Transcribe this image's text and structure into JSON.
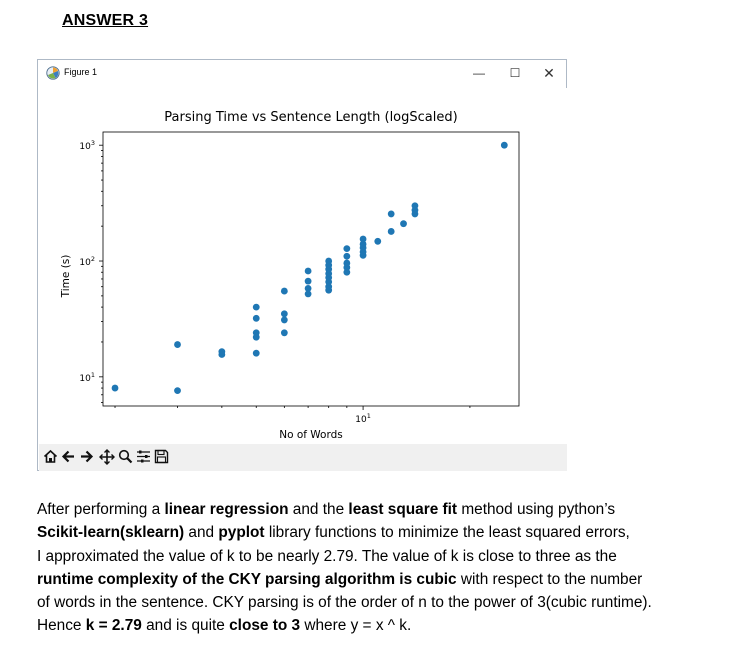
{
  "heading": "ANSWER 3",
  "window": {
    "title": "Figure 1",
    "controls": {
      "minimize": "—",
      "maximize": "☐",
      "close": "✕"
    }
  },
  "toolbar": {
    "icons": [
      "home-icon",
      "back-arrow-icon",
      "forward-arrow-icon",
      "pan-icon",
      "zoom-icon",
      "subplots-icon",
      "save-icon"
    ]
  },
  "chart_data": {
    "type": "scatter",
    "title": "Parsing Time vs Sentence Length (logScaled)",
    "xlabel": "No of Words",
    "ylabel": "Time (s)",
    "xscale": "log",
    "yscale": "log",
    "xlim": [
      1.85,
      27.5
    ],
    "ylim": [
      5.6,
      1300
    ],
    "xticks": [
      {
        "value": 10,
        "label": "10",
        "exp": "1"
      }
    ],
    "yticks": [
      {
        "value": 10,
        "label": "10",
        "exp": "1"
      },
      {
        "value": 100,
        "label": "10",
        "exp": "2"
      },
      {
        "value": 1000,
        "label": "10",
        "exp": "3"
      }
    ],
    "color": "#1f77b4",
    "grid": false,
    "legend": "none",
    "points": [
      {
        "x": 2,
        "y": 8
      },
      {
        "x": 3,
        "y": 7.6
      },
      {
        "x": 3,
        "y": 19
      },
      {
        "x": 4,
        "y": 15.6
      },
      {
        "x": 4,
        "y": 16.5
      },
      {
        "x": 5,
        "y": 16
      },
      {
        "x": 5,
        "y": 22
      },
      {
        "x": 5,
        "y": 24
      },
      {
        "x": 5,
        "y": 32
      },
      {
        "x": 5,
        "y": 40
      },
      {
        "x": 6,
        "y": 24
      },
      {
        "x": 6,
        "y": 31
      },
      {
        "x": 6,
        "y": 35
      },
      {
        "x": 6,
        "y": 55
      },
      {
        "x": 7,
        "y": 52
      },
      {
        "x": 7,
        "y": 58
      },
      {
        "x": 7,
        "y": 67
      },
      {
        "x": 7,
        "y": 82
      },
      {
        "x": 8,
        "y": 56
      },
      {
        "x": 8,
        "y": 60
      },
      {
        "x": 8,
        "y": 66
      },
      {
        "x": 8,
        "y": 72
      },
      {
        "x": 8,
        "y": 78
      },
      {
        "x": 8,
        "y": 85
      },
      {
        "x": 8,
        "y": 92
      },
      {
        "x": 8,
        "y": 100
      },
      {
        "x": 9,
        "y": 80
      },
      {
        "x": 9,
        "y": 88
      },
      {
        "x": 9,
        "y": 96
      },
      {
        "x": 9,
        "y": 110
      },
      {
        "x": 9,
        "y": 128
      },
      {
        "x": 10,
        "y": 112
      },
      {
        "x": 10,
        "y": 120
      },
      {
        "x": 10,
        "y": 130
      },
      {
        "x": 10,
        "y": 140
      },
      {
        "x": 10,
        "y": 155
      },
      {
        "x": 11,
        "y": 148
      },
      {
        "x": 12,
        "y": 180
      },
      {
        "x": 12,
        "y": 255
      },
      {
        "x": 13,
        "y": 210
      },
      {
        "x": 14,
        "y": 255
      },
      {
        "x": 14,
        "y": 275
      },
      {
        "x": 14,
        "y": 300
      },
      {
        "x": 25,
        "y": 1000
      }
    ]
  },
  "paragraph": [
    [
      {
        "t": "After performing a "
      },
      {
        "t": "linear regression",
        "b": true
      },
      {
        "t": " and the "
      },
      {
        "t": "least square fit",
        "b": true
      },
      {
        "t": " method using python’s"
      }
    ],
    [
      {
        "t": "Scikit-learn(sklearn)",
        "b": true
      },
      {
        "t": " and "
      },
      {
        "t": "pyplot",
        "b": true
      },
      {
        "t": " library functions to minimize the least squared errors,"
      }
    ],
    [
      {
        "t": "I approximated the value of k to be nearly 2.79. The value of k is close to three as the"
      }
    ],
    [
      {
        "t": "runtime complexity of the CKY parsing algorithm is cubic",
        "b": true
      },
      {
        "t": " with respect to the number"
      }
    ],
    [
      {
        "t": "of words in the sentence. CKY parsing is of the order of n to the power of 3(cubic runtime)."
      }
    ],
    [
      {
        "t": "Hence "
      },
      {
        "t": "k = 2.79",
        "b": true
      },
      {
        "t": " and is quite "
      },
      {
        "t": "close to 3",
        "b": true
      },
      {
        "t": " where y = x ^ k."
      }
    ]
  ]
}
